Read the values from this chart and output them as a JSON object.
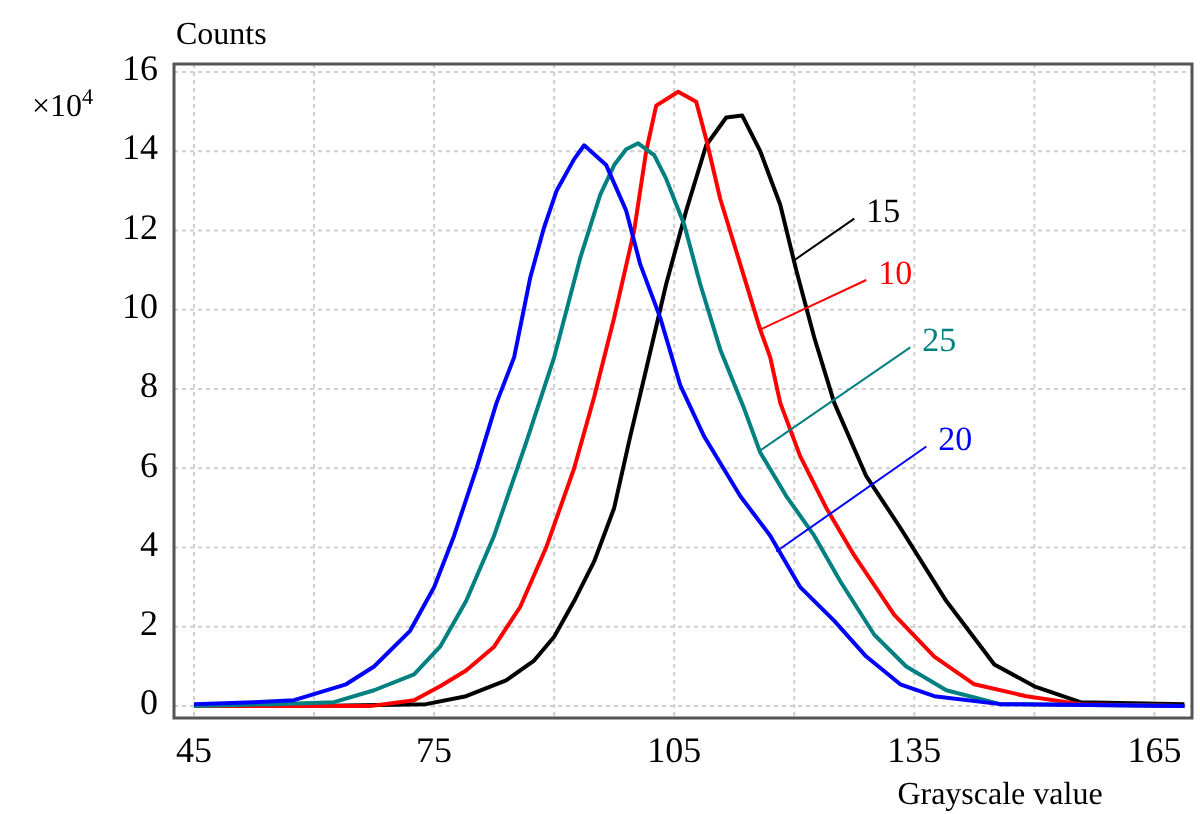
{
  "chart_data": {
    "type": "line",
    "xlabel": "Grayscale value",
    "ylabel": "Counts",
    "annotations": [
      "×10$^{4}$"
    ],
    "xlim": [
      42.5,
      169.7
    ],
    "ylim": [
      -0.3,
      16.2
    ],
    "xticks": [
      45,
      {
        "value": 60,
        "label": null
      },
      75,
      {
        "value": 90,
        "label": null
      },
      105,
      {
        "value": 120,
        "label": null
      },
      135,
      {
        "value": 150,
        "label": null
      },
      165
    ],
    "yticks": [
      0,
      2,
      4,
      6,
      8,
      10,
      12,
      14,
      16
    ],
    "grid": true,
    "legend": false,
    "marker": "none",
    "line_style": "solid",
    "series": [
      {
        "name": "15",
        "color": "#000000",
        "x": [
          45,
          60,
          74,
          79,
          84,
          87.5,
          90,
          92.5,
          95,
          97.5,
          99.5,
          101.5,
          104,
          106.5,
          109,
          111.5,
          113.5,
          115.75,
          118.25,
          120.25,
          122.5,
          125,
          129,
          133.25,
          139,
          145,
          150,
          155.75,
          168.75
        ],
        "values": [
          0,
          0,
          0.05,
          0.25,
          0.65,
          1.15,
          1.75,
          2.65,
          3.65,
          5.0,
          6.8,
          8.5,
          10.65,
          12.5,
          14.15,
          14.85,
          14.9,
          14.0,
          12.65,
          11.0,
          9.3,
          7.65,
          5.8,
          4.5,
          2.65,
          1.05,
          0.5,
          0.1,
          0.05
        ]
      },
      {
        "name": "10",
        "color": "#ff0000",
        "x": [
          45,
          60,
          67,
          72.5,
          75.75,
          79,
          82.5,
          85.75,
          89,
          92.5,
          95,
          97.5,
          100,
          101.5,
          102.75,
          105.5,
          107.75,
          109,
          110.75,
          113.25,
          115.75,
          117,
          118.25,
          120.75,
          124,
          127.5,
          132.5,
          137.5,
          142.5,
          149,
          155.75,
          168.75
        ],
        "values": [
          0,
          0,
          0,
          0.15,
          0.5,
          0.9,
          1.5,
          2.5,
          4.0,
          6.0,
          7.8,
          9.8,
          12.0,
          14.0,
          15.15,
          15.5,
          15.25,
          14.3,
          12.8,
          11.15,
          9.5,
          8.8,
          7.65,
          6.3,
          5.0,
          3.8,
          2.3,
          1.25,
          0.55,
          0.25,
          0.05,
          0
        ]
      },
      {
        "name": "25",
        "color": "#008080",
        "x": [
          45,
          55,
          62.5,
          67.5,
          72.5,
          75.75,
          79,
          82.5,
          86.5,
          90,
          93.25,
          95.75,
          97.5,
          99,
          100.5,
          102.5,
          104,
          106.25,
          108.25,
          110.75,
          113.75,
          115.75,
          119,
          122.5,
          125.75,
          130,
          134,
          139,
          145.75,
          168.75
        ],
        "values": [
          0,
          0.05,
          0.1,
          0.4,
          0.8,
          1.5,
          2.65,
          4.3,
          6.65,
          8.8,
          11.3,
          12.9,
          13.65,
          14.05,
          14.2,
          13.9,
          13.3,
          12.15,
          10.65,
          9.0,
          7.5,
          6.4,
          5.3,
          4.3,
          3.15,
          1.8,
          1.0,
          0.4,
          0.05,
          0
        ]
      },
      {
        "name": "20",
        "color": "#0000ff",
        "x": [
          45,
          52.5,
          57.5,
          64,
          67.5,
          72,
          75,
          77.5,
          80.3,
          82.8,
          85,
          87,
          88.7,
          90.3,
          92.5,
          93.75,
          96.5,
          99,
          100.75,
          103.25,
          105.75,
          108.75,
          113.25,
          117,
          120.75,
          125,
          129,
          133.25,
          137.5,
          145.75,
          168.75
        ],
        "values": [
          0.05,
          0.1,
          0.15,
          0.55,
          1.0,
          1.9,
          3.0,
          4.3,
          6.0,
          7.65,
          8.8,
          10.8,
          12.05,
          13.0,
          13.8,
          14.15,
          13.65,
          12.5,
          11.15,
          9.8,
          8.1,
          6.8,
          5.3,
          4.3,
          3.0,
          2.15,
          1.25,
          0.55,
          0.25,
          0.05,
          0
        ]
      }
    ]
  }
}
